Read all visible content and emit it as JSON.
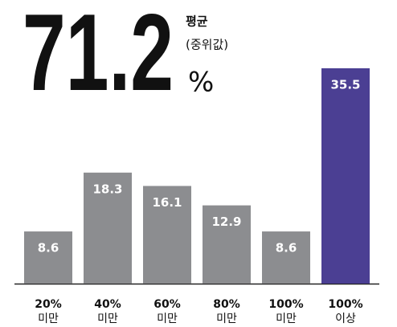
{
  "chart_data": {
    "type": "bar",
    "headline": {
      "value": 71.2,
      "label": "평균",
      "sublabel": "(중위값)",
      "unit": "%"
    },
    "categories": [
      [
        "20%",
        "미만"
      ],
      [
        "40%",
        "미만"
      ],
      [
        "60%",
        "미만"
      ],
      [
        "80%",
        "미만"
      ],
      [
        "100%",
        "미만"
      ],
      [
        "100%",
        "이상"
      ]
    ],
    "values": [
      8.6,
      18.3,
      16.1,
      12.9,
      8.6,
      35.5
    ],
    "colors": [
      "#8c8d90",
      "#8c8d90",
      "#8c8d90",
      "#8c8d90",
      "#8c8d90",
      "#4b3f93"
    ]
  }
}
